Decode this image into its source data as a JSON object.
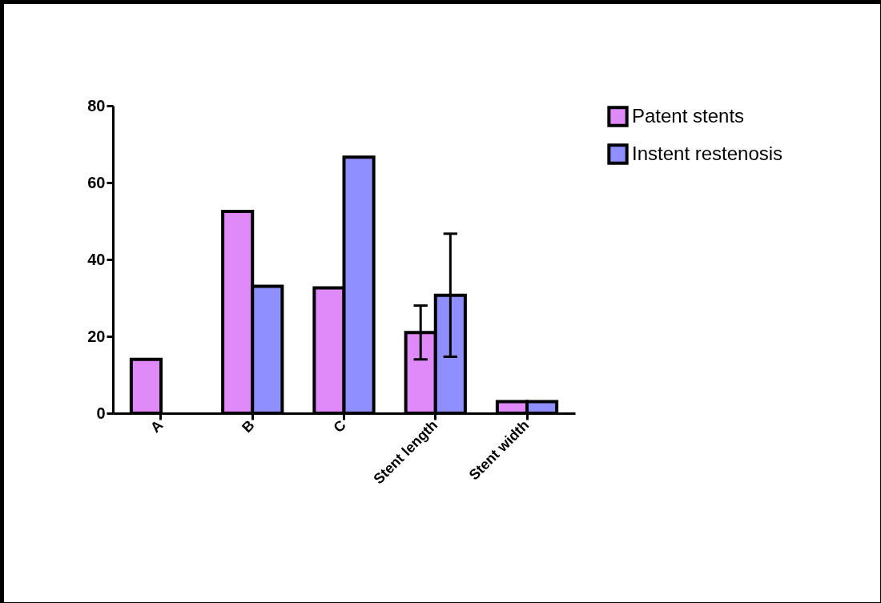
{
  "chart_data": {
    "type": "bar",
    "categories": [
      "A",
      "B",
      "C",
      "Stent length",
      "Stent width"
    ],
    "series": [
      {
        "name": "Patent stents",
        "color": "#df8af8",
        "values": [
          14,
          52.5,
          32.6,
          21,
          3
        ],
        "errors": [
          null,
          null,
          null,
          7,
          null
        ]
      },
      {
        "name": " Instent restenosis",
        "color": "#8f8fff",
        "values": [
          null,
          33,
          66.6,
          30.7,
          3
        ],
        "errors": [
          null,
          null,
          null,
          16,
          null
        ]
      }
    ],
    "ylim": [
      0,
      80
    ],
    "yticks": [
      0,
      20,
      40,
      60,
      80
    ],
    "grid": false,
    "legend": "top right"
  }
}
